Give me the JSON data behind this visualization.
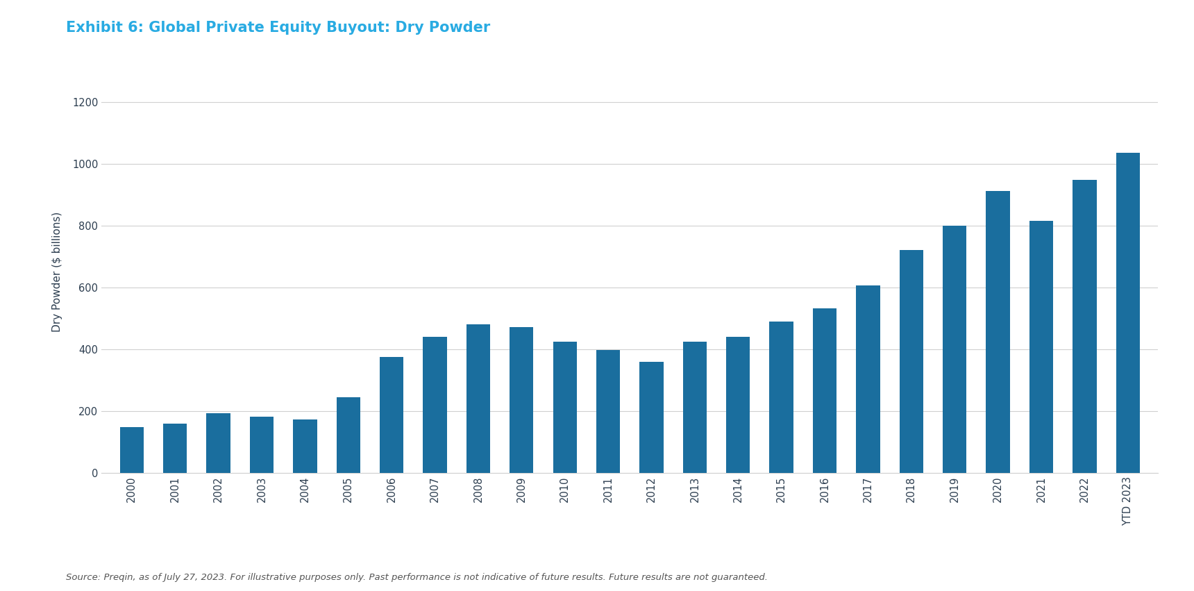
{
  "title": "Exhibit 6: Global Private Equity Buyout: Dry Powder",
  "ylabel": "Dry Powder ($ billions)",
  "source_text": "Source: Preqin, as of July 27, 2023. For illustrative purposes only. Past performance is not indicative of future results. Future results are not guaranteed.",
  "categories": [
    "2000",
    "2001",
    "2002",
    "2003",
    "2004",
    "2005",
    "2006",
    "2007",
    "2008",
    "2009",
    "2010",
    "2011",
    "2012",
    "2013",
    "2014",
    "2015",
    "2016",
    "2017",
    "2018",
    "2019",
    "2020",
    "2021",
    "2022",
    "YTD 2023"
  ],
  "values": [
    148,
    160,
    192,
    182,
    172,
    245,
    375,
    440,
    480,
    472,
    425,
    398,
    358,
    425,
    440,
    490,
    532,
    605,
    720,
    800,
    912,
    815,
    948,
    1035
  ],
  "bar_color": "#1a6e9e",
  "ylim": [
    0,
    1300
  ],
  "yticks": [
    0,
    200,
    400,
    600,
    800,
    1000,
    1200
  ],
  "background_color": "#ffffff",
  "grid_color": "#d0d0d0",
  "title_color": "#29abe2",
  "axis_label_color": "#2d3e50",
  "tick_label_color": "#2d3e50",
  "title_fontsize": 15,
  "ylabel_fontsize": 11,
  "tick_fontsize": 10.5,
  "source_fontsize": 9.5,
  "source_color": "#555555",
  "bar_width": 0.55
}
